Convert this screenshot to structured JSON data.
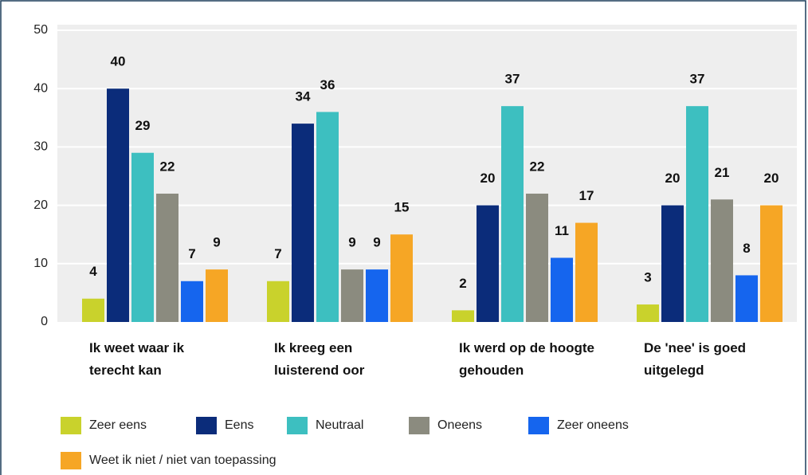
{
  "chart_data": {
    "type": "bar",
    "categories": [
      "Ik weet waar ik terecht kan",
      "Ik kreeg een luisterend oor",
      "Ik werd op de hoogte gehouden",
      "De 'nee' is goed uitgelegd"
    ],
    "series": [
      {
        "name": "Zeer eens",
        "color": "#c9d22c",
        "values": [
          4,
          7,
          2,
          3
        ]
      },
      {
        "name": "Eens",
        "color": "#0b2c7a",
        "values": [
          40,
          34,
          20,
          20
        ]
      },
      {
        "name": "Neutraal",
        "color": "#3dbfc0",
        "values": [
          29,
          36,
          37,
          37
        ]
      },
      {
        "name": "Oneens",
        "color": "#8b8b7f",
        "values": [
          22,
          9,
          22,
          21
        ]
      },
      {
        "name": "Zeer oneens",
        "color": "#1565ee",
        "values": [
          7,
          9,
          11,
          8
        ]
      },
      {
        "name": "Weet ik niet / niet van toepassing",
        "color": "#f6a625",
        "values": [
          9,
          15,
          17,
          20
        ]
      }
    ],
    "ylim": [
      0,
      50
    ],
    "yticks": [
      0,
      10,
      20,
      30,
      40,
      50
    ],
    "grid": true
  }
}
